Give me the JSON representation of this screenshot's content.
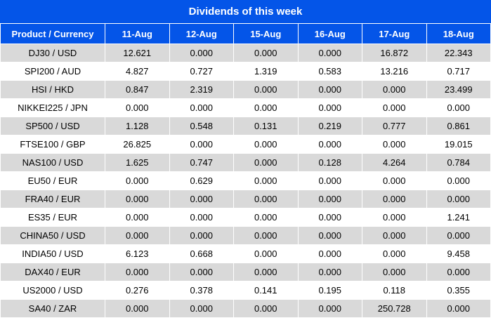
{
  "chart_data": {
    "type": "table",
    "title": "Dividends of this week",
    "columns": [
      "Product / Currency",
      "11-Aug",
      "12-Aug",
      "15-Aug",
      "16-Aug",
      "17-Aug",
      "18-Aug"
    ],
    "rows": [
      {
        "product": "DJ30 / USD",
        "values": [
          "12.621",
          "0.000",
          "0.000",
          "0.000",
          "16.872",
          "22.343"
        ]
      },
      {
        "product": "SPI200 / AUD",
        "values": [
          "4.827",
          "0.727",
          "1.319",
          "0.583",
          "13.216",
          "0.717"
        ]
      },
      {
        "product": "HSI / HKD",
        "values": [
          "0.847",
          "2.319",
          "0.000",
          "0.000",
          "0.000",
          "23.499"
        ]
      },
      {
        "product": "NIKKEI225 / JPN",
        "values": [
          "0.000",
          "0.000",
          "0.000",
          "0.000",
          "0.000",
          "0.000"
        ]
      },
      {
        "product": "SP500 / USD",
        "values": [
          "1.128",
          "0.548",
          "0.131",
          "0.219",
          "0.777",
          "0.861"
        ]
      },
      {
        "product": "FTSE100 / GBP",
        "values": [
          "26.825",
          "0.000",
          "0.000",
          "0.000",
          "0.000",
          "19.015"
        ]
      },
      {
        "product": "NAS100 / USD",
        "values": [
          "1.625",
          "0.747",
          "0.000",
          "0.128",
          "4.264",
          "0.784"
        ]
      },
      {
        "product": "EU50 / EUR",
        "values": [
          "0.000",
          "0.629",
          "0.000",
          "0.000",
          "0.000",
          "0.000"
        ]
      },
      {
        "product": "FRA40 / EUR",
        "values": [
          "0.000",
          "0.000",
          "0.000",
          "0.000",
          "0.000",
          "0.000"
        ]
      },
      {
        "product": "ES35 / EUR",
        "values": [
          "0.000",
          "0.000",
          "0.000",
          "0.000",
          "0.000",
          "1.241"
        ]
      },
      {
        "product": "CHINA50 / USD",
        "values": [
          "0.000",
          "0.000",
          "0.000",
          "0.000",
          "0.000",
          "0.000"
        ]
      },
      {
        "product": "INDIA50 / USD",
        "values": [
          "6.123",
          "0.668",
          "0.000",
          "0.000",
          "0.000",
          "9.458"
        ]
      },
      {
        "product": "DAX40 / EUR",
        "values": [
          "0.000",
          "0.000",
          "0.000",
          "0.000",
          "0.000",
          "0.000"
        ]
      },
      {
        "product": "US2000 / USD",
        "values": [
          "0.276",
          "0.378",
          "0.141",
          "0.195",
          "0.118",
          "0.355"
        ]
      },
      {
        "product": "SA40 / ZAR",
        "values": [
          "0.000",
          "0.000",
          "0.000",
          "0.000",
          "250.728",
          "0.000"
        ]
      }
    ],
    "layout_hints": {
      "zero_values_color": "black",
      "nonzero_values_color": "red",
      "alternating_rows": "gray-white starting gray"
    }
  },
  "colors": {
    "accent_blue": "#0455e8",
    "row_gray": "#d9d9d9",
    "value_red": "#e03b3b",
    "header_text": "#ffffff",
    "value_black": "#000000"
  }
}
